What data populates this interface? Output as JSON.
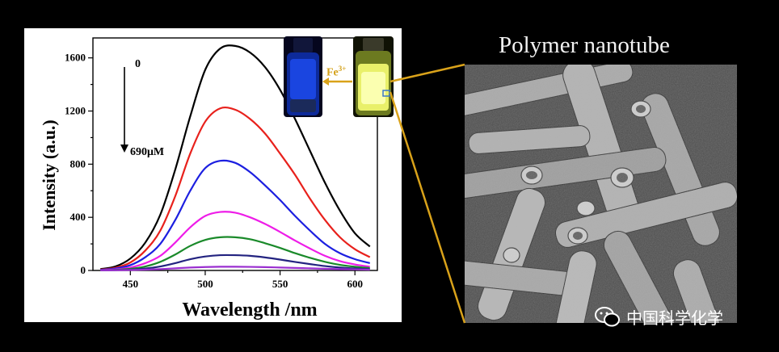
{
  "chart_data": {
    "type": "line",
    "xlabel": "Wavelength /nm",
    "ylabel": "Intensity (a.u.)",
    "xlim": [
      425,
      615
    ],
    "ylim": [
      0,
      1750
    ],
    "xticks": [
      450,
      500,
      550,
      600
    ],
    "yticks": [
      0,
      400,
      800,
      1200,
      1600
    ],
    "x": [
      430,
      440,
      450,
      460,
      470,
      480,
      490,
      500,
      510,
      520,
      530,
      540,
      550,
      560,
      570,
      580,
      590,
      600,
      610
    ],
    "series": [
      {
        "color": "#000000",
        "values": [
          10,
          30,
          90,
          210,
          420,
          760,
          1160,
          1510,
          1670,
          1690,
          1640,
          1530,
          1360,
          1140,
          900,
          660,
          450,
          280,
          180
        ]
      },
      {
        "color": "#e8211c",
        "values": [
          7,
          20,
          60,
          150,
          300,
          560,
          880,
          1120,
          1220,
          1210,
          1140,
          1030,
          880,
          720,
          540,
          380,
          250,
          160,
          100
        ]
      },
      {
        "color": "#1c1fe0",
        "values": [
          5,
          15,
          40,
          100,
          200,
          380,
          600,
          770,
          825,
          810,
          740,
          640,
          530,
          410,
          300,
          200,
          130,
          85,
          55
        ]
      },
      {
        "color": "#ee1de8",
        "values": [
          3,
          8,
          22,
          55,
          110,
          210,
          325,
          410,
          440,
          435,
          400,
          350,
          290,
          225,
          165,
          110,
          70,
          45,
          28
        ]
      },
      {
        "color": "#1a8a2a",
        "values": [
          2,
          5,
          12,
          30,
          65,
          120,
          185,
          230,
          250,
          250,
          235,
          205,
          170,
          130,
          95,
          65,
          42,
          28,
          18
        ]
      },
      {
        "color": "#232380",
        "values": [
          1,
          3,
          6,
          15,
          30,
          55,
          85,
          105,
          115,
          115,
          110,
          98,
          82,
          64,
          48,
          33,
          22,
          15,
          10
        ]
      },
      {
        "color": "#9a2fd0",
        "values": [
          1,
          2,
          3,
          6,
          10,
          16,
          22,
          26,
          28,
          28,
          27,
          25,
          22,
          19,
          16,
          13,
          10,
          8,
          6
        ]
      }
    ],
    "annotations": {
      "top": "0",
      "bottom": "690μM"
    }
  },
  "inset": {
    "reagent": "Fe",
    "charge": "3+"
  },
  "right_title": "Polymer nanotube",
  "watermark": {
    "text": "中国科学化学"
  }
}
